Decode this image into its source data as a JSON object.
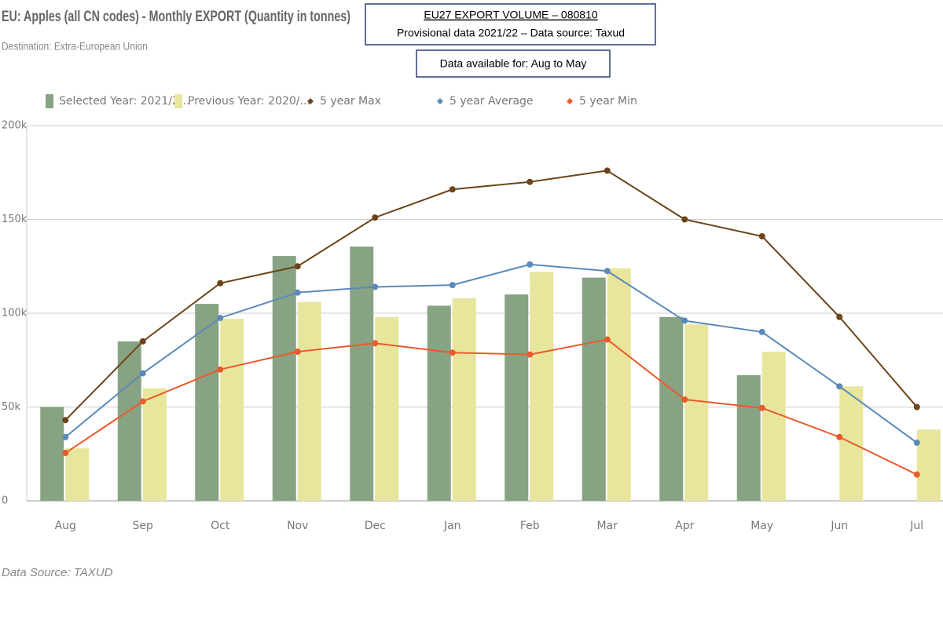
{
  "chart_data": {
    "type": "bar",
    "title": "EU: Apples (all CN codes) - Monthly EXPORT (Quantity in tonnes)",
    "subtitle": "Destination: Extra-European Union",
    "annotations": [
      "EU27 EXPORT VOLUME  – 080810",
      "Provisional data 2021/22 – Data source: Taxud",
      "Data available for: Aug to May"
    ],
    "source": "Data Source: TAXUD",
    "categories": [
      "Aug",
      "Sep",
      "Oct",
      "Nov",
      "Dec",
      "Jan",
      "Feb",
      "Mar",
      "Apr",
      "May",
      "Jun",
      "Jul"
    ],
    "series": [
      {
        "name": "Selected Year: 2021/2...",
        "type": "bar",
        "color": "#88a384",
        "values": [
          50000,
          85000,
          105000,
          130500,
          135500,
          104000,
          110000,
          119000,
          98000,
          67000,
          null,
          null
        ]
      },
      {
        "name": "Previous Year: 2020/...",
        "type": "bar",
        "color": "#e8e69d",
        "values": [
          28000,
          60000,
          97000,
          106000,
          98000,
          108000,
          122000,
          124000,
          94000,
          79500,
          61000,
          38000
        ]
      },
      {
        "name": "5 year Max",
        "type": "line",
        "color": "#6b4418",
        "values": [
          43000,
          85000,
          116000,
          125000,
          151000,
          166000,
          170000,
          176000,
          150000,
          141000,
          98000,
          50000
        ]
      },
      {
        "name": "5 year Average",
        "type": "line",
        "color": "#5b8ab8",
        "values": [
          34000,
          68000,
          97500,
          111000,
          114000,
          115000,
          126000,
          122500,
          96000,
          90000,
          61000,
          31000
        ]
      },
      {
        "name": "5 year Min",
        "type": "line",
        "color": "#ea5a2c",
        "values": [
          25500,
          53000,
          70000,
          79500,
          84000,
          79000,
          78000,
          86000,
          54000,
          49500,
          34000,
          14000
        ]
      }
    ],
    "ylim": [
      0,
      200000
    ],
    "yticks": [
      {
        "value": 0,
        "label": "0"
      },
      {
        "value": 50000,
        "label": "50k"
      },
      {
        "value": 100000,
        "label": "100k"
      },
      {
        "value": 150000,
        "label": "150k"
      },
      {
        "value": 200000,
        "label": "200k"
      }
    ],
    "grid": true
  }
}
